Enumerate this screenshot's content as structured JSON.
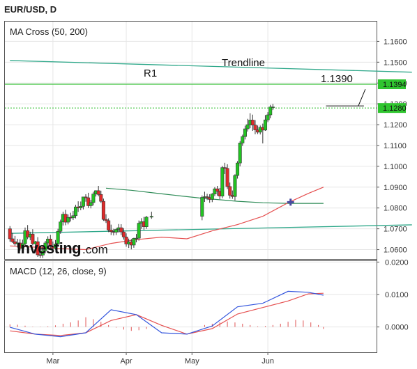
{
  "chart_data": {
    "type": "candlestick",
    "title": "EUR/USD, D",
    "watermark": "Investing.com",
    "price_panel": {
      "indicator_label": "MA Cross (50, 200)",
      "y_ticks": [
        "1.1600",
        "1.1500",
        "1.1400",
        "1.1300",
        "1.1200",
        "1.1100",
        "1.1000",
        "1.0900",
        "1.0800",
        "1.0700",
        "1.0600"
      ],
      "ylim": [
        1.0555,
        1.1695
      ],
      "price_badges": [
        {
          "label": "1.1394",
          "value": 1.1394,
          "style": "solid"
        },
        {
          "label": "1.1280",
          "value": 1.128,
          "style": "dashed"
        }
      ],
      "annotations": {
        "r1_label": "R1",
        "trendline_label": "Trendline",
        "level_label": "1.1390"
      },
      "upper_trendline": {
        "x": [
          0,
          159
        ],
        "y": [
          1.1508,
          1.1452
        ]
      },
      "lower_trendline": {
        "x": [
          0,
          159
        ],
        "y": [
          1.0678,
          1.0719
        ]
      },
      "r1_level": 1.1394,
      "level_line": {
        "x": [
          125,
          140
        ],
        "y": [
          1.129,
          1.129
        ]
      },
      "ma_cross_slow": {
        "x": [
          38,
          48,
          60,
          75,
          90,
          100,
          110,
          118,
          124
        ],
        "y": [
          1.0895,
          1.0885,
          1.0868,
          1.0848,
          1.0832,
          1.0825,
          1.0822,
          1.0822,
          1.0822
        ]
      },
      "ma_cross_fast": {
        "x": [
          0,
          10,
          20,
          30,
          40,
          50,
          60,
          70,
          80,
          90,
          100,
          110,
          118,
          124
        ],
        "y": [
          1.0618,
          1.0612,
          1.0605,
          1.06,
          1.063,
          1.0648,
          1.066,
          1.0652,
          1.069,
          1.072,
          1.076,
          1.0825,
          1.087,
          1.09
        ]
      },
      "cross_marker": {
        "x": 111,
        "y": 1.0828
      },
      "candles": {
        "open": [
          1.07,
          1.0652,
          1.0638,
          1.0628,
          1.0632,
          1.0606,
          1.0628,
          1.0691,
          1.066,
          1.0674,
          1.0628,
          1.0638,
          1.0575,
          1.0574,
          1.0595,
          1.0632,
          1.0651,
          1.0616,
          1.0606,
          1.0627,
          1.0688,
          1.0733,
          1.077,
          1.0732,
          1.0755,
          1.0753,
          1.0763,
          1.0805,
          1.08,
          1.0808,
          1.0853,
          1.0849,
          1.0811,
          1.0826,
          1.0867,
          1.0883,
          1.0865,
          1.0832,
          1.0745,
          1.0739,
          1.0694,
          1.0686,
          1.0684,
          1.0697,
          1.0705,
          1.0685,
          1.0661,
          1.0627,
          1.0637,
          1.0622,
          1.0654,
          1.0655,
          1.0727,
          1.0734,
          1.071,
          1.0756,
          1.076,
          1.0851,
          1.0854,
          1.085,
          1.0841,
          1.0867,
          1.0892,
          1.088,
          1.0857,
          1.0994,
          1.099,
          1.0903,
          1.0861,
          1.0855,
          1.0956,
          1.1016,
          1.1112,
          1.1143,
          1.118,
          1.12,
          1.1222,
          1.1198,
          1.1175,
          1.1164,
          1.1187,
          1.1174,
          1.1223,
          1.1247,
          1.1285
        ],
        "high": [
          1.0713,
          1.0681,
          1.0666,
          1.0652,
          1.065,
          1.0648,
          1.0706,
          1.0718,
          1.0686,
          1.0698,
          1.0642,
          1.066,
          1.0596,
          1.062,
          1.0642,
          1.0664,
          1.0671,
          1.0639,
          1.0646,
          1.07,
          1.0744,
          1.0782,
          1.0791,
          1.0769,
          1.0777,
          1.0786,
          1.0815,
          1.0832,
          1.0831,
          1.085,
          1.0866,
          1.0873,
          1.0839,
          1.0878,
          1.0885,
          1.0906,
          1.0883,
          1.0845,
          1.077,
          1.075,
          1.072,
          1.07,
          1.0703,
          1.0723,
          1.0722,
          1.0703,
          1.0678,
          1.0653,
          1.0651,
          1.0657,
          1.0675,
          1.074,
          1.0751,
          1.0757,
          1.0762,
          1.0782,
          1.086,
          1.0878,
          1.0868,
          1.0866,
          1.0871,
          1.09,
          1.0906,
          1.0896,
          1.1002,
          1.1017,
          1.101,
          1.0922,
          1.0884,
          1.0962,
          1.1025,
          1.1121,
          1.1152,
          1.1195,
          1.1228,
          1.1255,
          1.1248,
          1.1222,
          1.1196,
          1.1196,
          1.1205,
          1.1246,
          1.126,
          1.1295,
          1.13
        ],
        "low": [
          1.0638,
          1.0632,
          1.0618,
          1.061,
          1.0596,
          1.0592,
          1.0614,
          1.065,
          1.0645,
          1.062,
          1.0608,
          1.0565,
          1.056,
          1.056,
          1.0582,
          1.0612,
          1.0602,
          1.0594,
          1.06,
          1.0619,
          1.0676,
          1.0716,
          1.0717,
          1.0721,
          1.0735,
          1.0742,
          1.075,
          1.0781,
          1.0789,
          1.0793,
          1.083,
          1.08,
          1.0798,
          1.0812,
          1.0855,
          1.0856,
          1.0824,
          1.0738,
          1.0728,
          1.0684,
          1.067,
          1.0668,
          1.067,
          1.0682,
          1.067,
          1.0648,
          1.0614,
          1.0608,
          1.0601,
          1.0609,
          1.0635,
          1.0643,
          1.07,
          1.0695,
          1.07,
          1.0748,
          1.0741,
          1.0829,
          1.0838,
          1.0825,
          1.0828,
          1.0857,
          1.0859,
          1.0842,
          1.0847,
          1.0963,
          1.0891,
          1.0845,
          1.0844,
          1.0836,
          1.0941,
          1.1,
          1.1098,
          1.1129,
          1.1167,
          1.1183,
          1.117,
          1.1154,
          1.1155,
          1.1153,
          1.111,
          1.117,
          1.1212,
          1.1231,
          1.127
        ],
        "close": [
          1.0652,
          1.0638,
          1.0628,
          1.0632,
          1.0606,
          1.0628,
          1.0691,
          1.066,
          1.0674,
          1.0628,
          1.0638,
          1.0575,
          1.0574,
          1.0595,
          1.0632,
          1.0651,
          1.0616,
          1.0606,
          1.0627,
          1.0688,
          1.0733,
          1.077,
          1.0732,
          1.0755,
          1.0753,
          1.0763,
          1.0805,
          1.08,
          1.0808,
          1.0853,
          1.0849,
          1.0811,
          1.0826,
          1.0867,
          1.0883,
          1.0865,
          1.0832,
          1.0745,
          1.0739,
          1.0694,
          1.0686,
          1.0684,
          1.0697,
          1.0705,
          1.0685,
          1.0661,
          1.0627,
          1.0637,
          1.0622,
          1.0654,
          1.0655,
          1.0727,
          1.0734,
          1.071,
          1.0756,
          1.076,
          1.0851,
          1.0854,
          1.085,
          1.0841,
          1.0867,
          1.0892,
          1.088,
          1.0857,
          1.0994,
          1.099,
          1.0903,
          1.0861,
          1.0855,
          1.0956,
          1.1016,
          1.1112,
          1.1143,
          1.118,
          1.12,
          1.1222,
          1.1198,
          1.1175,
          1.1164,
          1.1187,
          1.1174,
          1.1223,
          1.1247,
          1.1285,
          1.1285
        ]
      },
      "candle_x": [
        0,
        1,
        2,
        3,
        4,
        5,
        6,
        7,
        8,
        9,
        10,
        11,
        12,
        13,
        14,
        15,
        16,
        17,
        18,
        19,
        20,
        21,
        22,
        23,
        24,
        25,
        26,
        27,
        28,
        29,
        30,
        31,
        32,
        33,
        34,
        35,
        36,
        37,
        38,
        39,
        40,
        41,
        42,
        43,
        44,
        45,
        46,
        47,
        48,
        49,
        50,
        51,
        52,
        53,
        54,
        56,
        76,
        77,
        78,
        79,
        80,
        81,
        82,
        83,
        84,
        85,
        86,
        87,
        88,
        89,
        90,
        91,
        92,
        93,
        94,
        95,
        96,
        97,
        98,
        99,
        100,
        101,
        102,
        103,
        104
      ],
      "colors": {
        "up": "#22c322",
        "down": "#e02a2a",
        "ma_slow": "#2e8b57",
        "ma_fast": "#e55050",
        "upper_trend": "#2fa88a",
        "lower_trend": "#2fa88a",
        "r1": "#3cc43c",
        "dashed": "#2fbf2f",
        "marker": "#4a4aa0"
      }
    },
    "macd_panel": {
      "indicator_label": "MACD (12, 26, close, 9)",
      "y_ticks": [
        "0.0200",
        "0.0100",
        "0.0000"
      ],
      "ylim": [
        -0.0078,
        0.0203
      ],
      "macd": {
        "x": [
          0,
          10,
          20,
          30,
          40,
          50,
          60,
          70,
          80,
          90,
          100,
          110,
          118,
          124
        ],
        "y": [
          -0.0001,
          -0.0022,
          -0.003,
          -0.0018,
          0.0053,
          0.0038,
          -0.0018,
          -0.0022,
          0.0003,
          0.0062,
          0.0073,
          0.011,
          0.0107,
          0.0098
        ]
      },
      "signal": {
        "x": [
          0,
          10,
          20,
          30,
          40,
          50,
          60,
          70,
          80,
          90,
          100,
          110,
          118,
          124
        ],
        "y": [
          -0.0012,
          -0.0022,
          -0.0026,
          -0.0018,
          0.002,
          0.0038,
          0.0005,
          -0.0022,
          -0.0005,
          0.004,
          0.006,
          0.008,
          0.0102,
          0.0104
        ]
      },
      "histogram": {
        "x": [
          0,
          3,
          6,
          9,
          12,
          15,
          18,
          21,
          24,
          27,
          30,
          33,
          36,
          39,
          42,
          45,
          48,
          51,
          54,
          77,
          80,
          83,
          86,
          89,
          92,
          95,
          98,
          101,
          104,
          107,
          110,
          113,
          116,
          119,
          122,
          124
        ],
        "y": [
          0.0008,
          0.0007,
          0.0004,
          0.0001,
          0.0001,
          0.0002,
          0.0005,
          0.001,
          0.0014,
          0.002,
          0.003,
          0.0024,
          0.0016,
          0.0006,
          -0.0002,
          -0.0008,
          -0.0012,
          -0.001,
          -0.0006,
          0.0006,
          0.001,
          0.0014,
          0.0017,
          0.0014,
          0.001,
          0.0006,
          0.0002,
          0.0003,
          0.0006,
          0.001,
          0.0016,
          0.0022,
          0.002,
          0.0014,
          0.0006,
          -0.0006
        ]
      },
      "colors": {
        "macd": "#3355dd",
        "signal": "#e55050",
        "hist": "#e05555"
      }
    },
    "x_axis": {
      "labels": [
        "Mar",
        "Apr",
        "May",
        "Jun"
      ],
      "label_index": [
        17,
        46,
        72,
        102
      ],
      "index_range": [
        -2,
        145
      ]
    }
  }
}
